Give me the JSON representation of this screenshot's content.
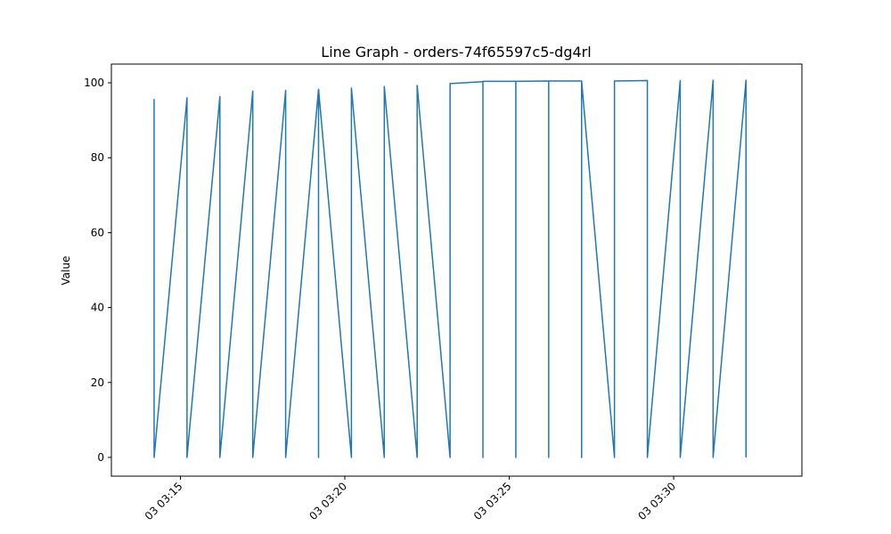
{
  "chart_data": {
    "type": "line",
    "title": "Line Graph - orders-74f65597c5-dg4rl",
    "xlabel": "",
    "ylabel": "Value",
    "ylim": [
      -5,
      105
    ],
    "yticks": [
      0,
      20,
      40,
      60,
      80,
      100
    ],
    "xtick_labels": [
      "03 03:15",
      "03 03:20",
      "03 03:25",
      "03 03:30"
    ],
    "x_unit": "minutes after 03:00 on day 03",
    "xlim": [
      12.9,
      33.9
    ],
    "xticks": [
      15,
      20,
      25,
      30
    ],
    "grid": false,
    "line_color": "#1f77b4",
    "series": [
      {
        "name": "",
        "points": [
          [
            14.2,
            95.7
          ],
          [
            14.2,
            0
          ],
          [
            15.2,
            96.0
          ],
          [
            15.2,
            0
          ],
          [
            16.2,
            96.3
          ],
          [
            16.2,
            0
          ],
          [
            17.2,
            97.8
          ],
          [
            17.2,
            0
          ],
          [
            18.2,
            98.0
          ],
          [
            18.2,
            0
          ],
          [
            19.2,
            98.3
          ],
          [
            19.2,
            0
          ],
          [
            19.2,
            98.3
          ],
          [
            20.2,
            0
          ],
          [
            20.2,
            98.6
          ],
          [
            21.2,
            0
          ],
          [
            21.2,
            99.0
          ],
          [
            22.2,
            0
          ],
          [
            22.2,
            99.3
          ],
          [
            23.2,
            0
          ],
          [
            23.2,
            99.8
          ],
          [
            24.2,
            100.3
          ],
          [
            24.2,
            0
          ],
          [
            24.2,
            100.4
          ],
          [
            25.2,
            100.4
          ],
          [
            25.2,
            0
          ],
          [
            25.2,
            100.4
          ],
          [
            26.2,
            100.5
          ],
          [
            26.2,
            0
          ],
          [
            26.2,
            100.5
          ],
          [
            27.2,
            100.5
          ],
          [
            27.2,
            0
          ],
          [
            27.2,
            100.5
          ],
          [
            28.2,
            0
          ],
          [
            28.2,
            100.5
          ],
          [
            29.2,
            100.6
          ],
          [
            29.2,
            0
          ],
          [
            30.2,
            100.6
          ],
          [
            30.2,
            0
          ],
          [
            31.2,
            100.7
          ],
          [
            31.2,
            0
          ],
          [
            32.2,
            100.7
          ],
          [
            32.2,
            0
          ]
        ]
      }
    ]
  }
}
